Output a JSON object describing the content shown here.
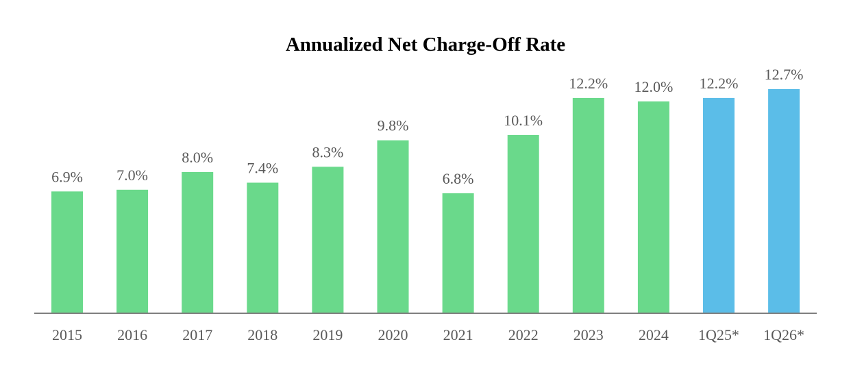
{
  "chart_data": {
    "type": "bar",
    "title": "Annualized Net Charge-Off Rate",
    "xlabel": "",
    "ylabel": "",
    "categories": [
      "2015",
      "2016",
      "2017",
      "2018",
      "2019",
      "2020",
      "2021",
      "2022",
      "2023",
      "2024",
      "1Q25*",
      "1Q26*"
    ],
    "values": [
      6.9,
      7.0,
      8.0,
      7.4,
      8.3,
      9.8,
      6.8,
      10.1,
      12.2,
      12.0,
      12.2,
      12.7
    ],
    "value_labels": [
      "6.9%",
      "7.0%",
      "8.0%",
      "7.4%",
      "8.3%",
      "9.8%",
      "6.8%",
      "10.1%",
      "12.2%",
      "12.0%",
      "12.2%",
      "12.7%"
    ],
    "bar_colors": [
      "#6ad98b",
      "#6ad98b",
      "#6ad98b",
      "#6ad98b",
      "#6ad98b",
      "#6ad98b",
      "#6ad98b",
      "#6ad98b",
      "#6ad98b",
      "#6ad98b",
      "#5bbde8",
      "#5bbde8"
    ],
    "ylim": [
      0,
      12.7
    ],
    "grid": false,
    "legend": "none",
    "axis_color": "#7f7f7f",
    "label_color": "#595959"
  }
}
